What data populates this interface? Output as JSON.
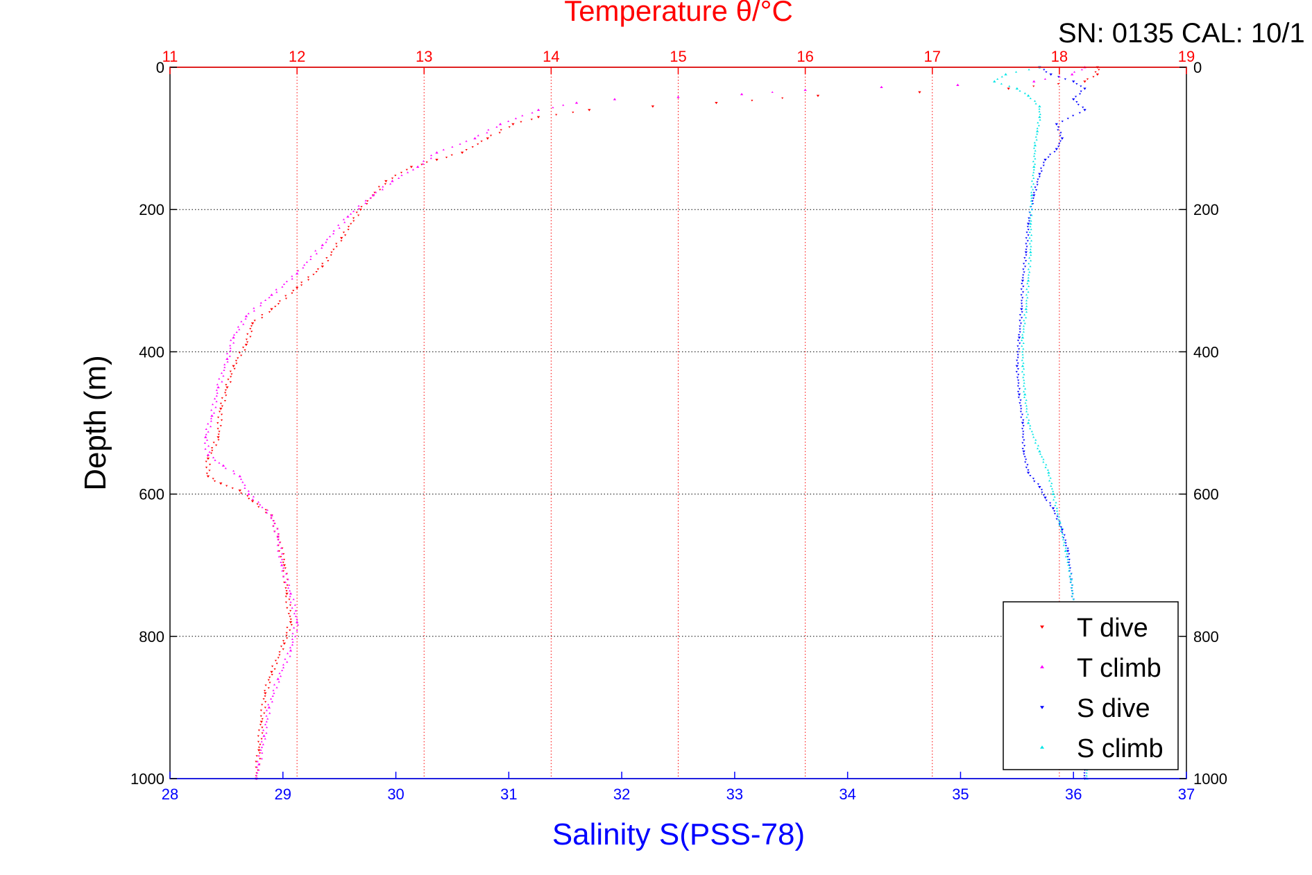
{
  "header": {
    "serial_text": "SN: 0135  CAL: 10/1"
  },
  "chart_data": {
    "type": "scatter",
    "title": "Temperature θ/°C",
    "xlabel_bottom": "Salinity S(PSS-78)",
    "xlabel_top": "Temperature θ/°C",
    "ylabel": "Depth (m)",
    "y_inverted": true,
    "grid": true,
    "legend_position": "bottom-right",
    "axes": {
      "salinity": {
        "range": [
          28,
          37
        ],
        "ticks": [
          "28",
          "29",
          "30",
          "31",
          "32",
          "33",
          "34",
          "35",
          "36",
          "37"
        ],
        "color": "#0000ff"
      },
      "temperature": {
        "range": [
          11,
          19
        ],
        "ticks": [
          "11",
          "12",
          "13",
          "14",
          "15",
          "16",
          "17",
          "18",
          "19"
        ],
        "color": "#ff0000"
      },
      "depth": {
        "range": [
          0,
          1000
        ],
        "ticks": [
          "0",
          "200",
          "400",
          "600",
          "800",
          "1000"
        ],
        "ticks_right": [
          "0",
          "200",
          "400",
          "600",
          "800",
          "1000"
        ]
      }
    },
    "series": [
      {
        "name": "T dive",
        "axis": "temperature",
        "color": "#ff0000",
        "marker": "triangle-down",
        "points": [
          [
            18.3,
            0
          ],
          [
            18.3,
            10
          ],
          [
            18.2,
            20
          ],
          [
            17.6,
            30
          ],
          [
            16.9,
            35
          ],
          [
            16.1,
            40
          ],
          [
            15.3,
            50
          ],
          [
            14.8,
            55
          ],
          [
            14.3,
            60
          ],
          [
            13.9,
            70
          ],
          [
            13.7,
            80
          ],
          [
            13.5,
            100
          ],
          [
            13.3,
            120
          ],
          [
            13.1,
            130
          ],
          [
            12.9,
            140
          ],
          [
            12.7,
            160
          ],
          [
            12.6,
            180
          ],
          [
            12.5,
            200
          ],
          [
            12.35,
            240
          ],
          [
            12.2,
            280
          ],
          [
            12.0,
            310
          ],
          [
            11.8,
            340
          ],
          [
            11.65,
            360
          ],
          [
            11.6,
            390
          ],
          [
            11.5,
            420
          ],
          [
            11.45,
            450
          ],
          [
            11.4,
            480
          ],
          [
            11.38,
            520
          ],
          [
            11.3,
            550
          ],
          [
            11.3,
            575
          ],
          [
            11.4,
            585
          ],
          [
            11.55,
            595
          ],
          [
            11.65,
            610
          ],
          [
            11.8,
            630
          ],
          [
            11.85,
            660
          ],
          [
            11.9,
            700
          ],
          [
            11.92,
            740
          ],
          [
            11.95,
            780
          ],
          [
            11.9,
            810
          ],
          [
            11.8,
            850
          ],
          [
            11.75,
            880
          ],
          [
            11.72,
            920
          ],
          [
            11.7,
            960
          ],
          [
            11.68,
            1000
          ]
        ]
      },
      {
        "name": "T climb",
        "axis": "temperature",
        "color": "#ff00ff",
        "marker": "triangle-up",
        "points": [
          [
            18.2,
            0
          ],
          [
            18.1,
            10
          ],
          [
            17.8,
            20
          ],
          [
            17.2,
            25
          ],
          [
            16.6,
            28
          ],
          [
            16.0,
            32
          ],
          [
            15.5,
            38
          ],
          [
            15.0,
            42
          ],
          [
            14.5,
            45
          ],
          [
            14.2,
            50
          ],
          [
            13.9,
            60
          ],
          [
            13.6,
            80
          ],
          [
            13.4,
            100
          ],
          [
            13.1,
            120
          ],
          [
            12.95,
            140
          ],
          [
            12.75,
            160
          ],
          [
            12.6,
            180
          ],
          [
            12.4,
            210
          ],
          [
            12.2,
            250
          ],
          [
            12.0,
            290
          ],
          [
            11.8,
            320
          ],
          [
            11.6,
            350
          ],
          [
            11.5,
            380
          ],
          [
            11.45,
            410
          ],
          [
            11.38,
            450
          ],
          [
            11.33,
            490
          ],
          [
            11.28,
            520
          ],
          [
            11.3,
            545
          ],
          [
            11.42,
            560
          ],
          [
            11.55,
            575
          ],
          [
            11.62,
            600
          ],
          [
            11.8,
            630
          ],
          [
            11.85,
            660
          ],
          [
            11.88,
            700
          ],
          [
            11.95,
            740
          ],
          [
            12.0,
            780
          ],
          [
            11.95,
            820
          ],
          [
            11.85,
            860
          ],
          [
            11.78,
            900
          ],
          [
            11.74,
            940
          ],
          [
            11.7,
            980
          ],
          [
            11.68,
            1000
          ]
        ]
      },
      {
        "name": "S dive",
        "axis": "salinity",
        "color": "#0000ff",
        "marker": "triangle-down",
        "points": [
          [
            35.7,
            0
          ],
          [
            35.8,
            10
          ],
          [
            36.0,
            20
          ],
          [
            36.1,
            30
          ],
          [
            36.0,
            45
          ],
          [
            36.1,
            60
          ],
          [
            35.85,
            80
          ],
          [
            35.9,
            100
          ],
          [
            35.85,
            115
          ],
          [
            35.75,
            130
          ],
          [
            35.7,
            150
          ],
          [
            35.65,
            180
          ],
          [
            35.6,
            220
          ],
          [
            35.58,
            260
          ],
          [
            35.55,
            300
          ],
          [
            35.54,
            340
          ],
          [
            35.52,
            380
          ],
          [
            35.5,
            420
          ],
          [
            35.52,
            460
          ],
          [
            35.55,
            500
          ],
          [
            35.56,
            540
          ],
          [
            35.6,
            570
          ],
          [
            35.7,
            590
          ],
          [
            35.75,
            605
          ],
          [
            35.82,
            620
          ],
          [
            35.9,
            650
          ],
          [
            35.95,
            680
          ],
          [
            35.98,
            720
          ],
          [
            36.0,
            760
          ],
          [
            36.02,
            800
          ],
          [
            36.05,
            860
          ],
          [
            36.08,
            920
          ],
          [
            36.1,
            1000
          ]
        ]
      },
      {
        "name": "S climb",
        "axis": "salinity",
        "color": "#00e5e5",
        "marker": "triangle-up",
        "points": [
          [
            35.7,
            0
          ],
          [
            35.4,
            10
          ],
          [
            35.3,
            20
          ],
          [
            35.5,
            30
          ],
          [
            35.6,
            40
          ],
          [
            35.7,
            55
          ],
          [
            35.7,
            70
          ],
          [
            35.68,
            90
          ],
          [
            35.66,
            110
          ],
          [
            35.65,
            140
          ],
          [
            35.63,
            180
          ],
          [
            35.62,
            220
          ],
          [
            35.62,
            260
          ],
          [
            35.6,
            300
          ],
          [
            35.58,
            340
          ],
          [
            35.55,
            380
          ],
          [
            35.55,
            420
          ],
          [
            35.57,
            460
          ],
          [
            35.6,
            500
          ],
          [
            35.7,
            540
          ],
          [
            35.78,
            570
          ],
          [
            35.82,
            600
          ],
          [
            35.88,
            640
          ],
          [
            35.93,
            680
          ],
          [
            35.98,
            720
          ],
          [
            36.0,
            760
          ],
          [
            36.03,
            800
          ],
          [
            36.06,
            860
          ],
          [
            36.09,
            920
          ],
          [
            36.12,
            1000
          ]
        ]
      }
    ],
    "legend": [
      "T dive",
      "T climb",
      "S dive",
      "S climb"
    ]
  }
}
